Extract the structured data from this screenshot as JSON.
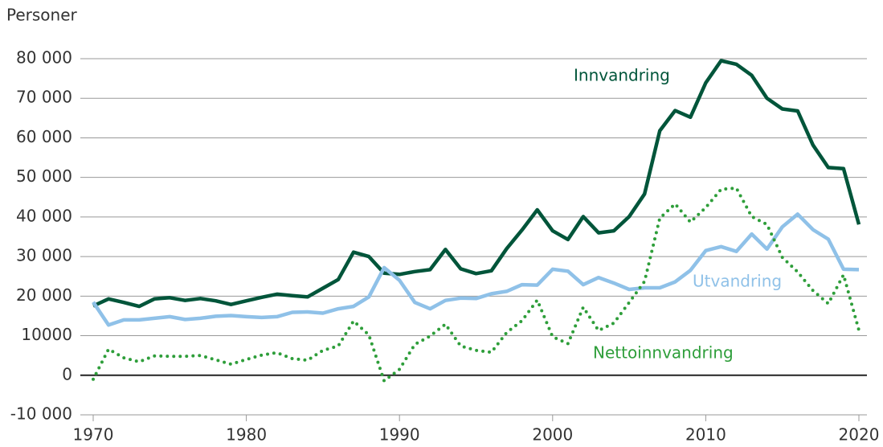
{
  "chart_data": {
    "type": "line",
    "y_axis_label": "Personer",
    "x": [
      1970,
      1971,
      1972,
      1973,
      1974,
      1975,
      1976,
      1977,
      1978,
      1979,
      1980,
      1981,
      1982,
      1983,
      1984,
      1985,
      1986,
      1987,
      1988,
      1989,
      1990,
      1991,
      1992,
      1993,
      1994,
      1995,
      1996,
      1997,
      1998,
      1999,
      2000,
      2001,
      2002,
      2003,
      2004,
      2005,
      2006,
      2007,
      2008,
      2009,
      2010,
      2011,
      2012,
      2013,
      2014,
      2015,
      2016,
      2017,
      2018,
      2019,
      2020
    ],
    "xlim": [
      1970,
      2020
    ],
    "xticks": [
      1970,
      1980,
      1990,
      2000,
      2010,
      2020
    ],
    "ylim": [
      -10000,
      80000
    ],
    "yticks": [
      {
        "value": -10000,
        "label": "-10 000"
      },
      0,
      10000,
      {
        "value": 20000,
        "label": "20 000"
      },
      {
        "value": 30000,
        "label": "30 000"
      },
      {
        "value": 40000,
        "label": "40 000"
      },
      {
        "value": 50000,
        "label": "50 000"
      },
      {
        "value": 60000,
        "label": "60 000"
      },
      {
        "value": 70000,
        "label": "70 000"
      },
      {
        "value": 80000,
        "label": "80 000"
      }
    ],
    "grid": true,
    "series": [
      {
        "name": "Innvandring",
        "color": "#00553a",
        "dash": "solid",
        "values": [
          17500,
          19300,
          18400,
          17400,
          19300,
          19600,
          18900,
          19400,
          18800,
          17900,
          18800,
          19700,
          20500,
          20100,
          19800,
          22000,
          24200,
          31100,
          30000,
          25800,
          25500,
          26200,
          26700,
          31800,
          26900,
          25700,
          26400,
          32000,
          36700,
          41800,
          36500,
          34300,
          40100,
          36000,
          36500,
          40100,
          45800,
          61800,
          66900,
          65200,
          73900,
          79500,
          78600,
          75800,
          70000,
          67300,
          66800,
          58200,
          52500,
          52200,
          38100
        ]
      },
      {
        "name": "Utvandring",
        "color": "#8fc1e8",
        "dash": "solid",
        "values": [
          18500,
          12700,
          14000,
          14000,
          14400,
          14800,
          14100,
          14400,
          14900,
          15100,
          14800,
          14600,
          14800,
          15900,
          16000,
          15700,
          16800,
          17400,
          19800,
          27200,
          24000,
          18400,
          16800,
          18900,
          19500,
          19400,
          20600,
          21200,
          22900,
          22800,
          26800,
          26300,
          22900,
          24700,
          23300,
          21700,
          22100,
          22100,
          23600,
          26500,
          31500,
          32500,
          31300,
          35700,
          31900,
          37500,
          40700,
          36800,
          34400,
          26800,
          26700
        ]
      },
      {
        "name": "Nettoinnvandring",
        "color": "#2e9e3a",
        "dash": "dotted",
        "values": [
          -1000,
          6600,
          4400,
          3400,
          4900,
          4800,
          4800,
          5000,
          3900,
          2800,
          4000,
          5100,
          5700,
          4200,
          3800,
          6300,
          7400,
          13700,
          10200,
          -1400,
          1500,
          7800,
          9900,
          12900,
          7400,
          6300,
          5800,
          10800,
          13800,
          19000,
          9700,
          8000,
          17200,
          11300,
          13200,
          18400,
          23700,
          39700,
          43300,
          38700,
          42400,
          47000,
          47300,
          40100,
          38100,
          29800,
          26100,
          21400,
          18100,
          25400,
          11400
        ]
      }
    ]
  }
}
